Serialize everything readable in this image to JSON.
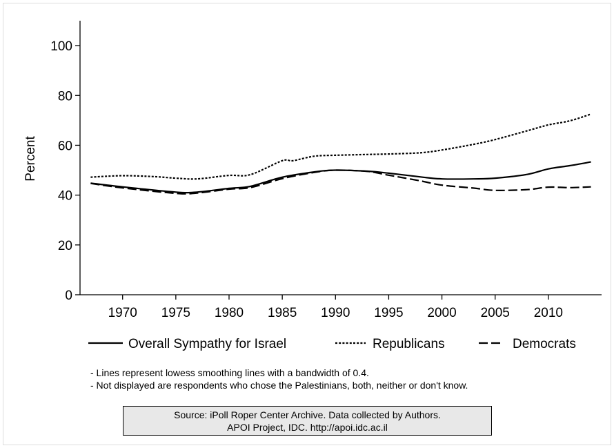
{
  "chart_data": {
    "type": "line",
    "ylabel": "Percent",
    "xlabel": "",
    "xlim": [
      1966,
      2015
    ],
    "ylim": [
      0,
      110
    ],
    "xticks": [
      1970,
      1975,
      1980,
      1985,
      1990,
      1995,
      2000,
      2005,
      2010
    ],
    "yticks": [
      0,
      20,
      40,
      60,
      80,
      100
    ],
    "grid": false,
    "legend_position": "bottom",
    "series": [
      {
        "name": "Overall Sympathy for Israel",
        "style": "solid",
        "x": [
          1967,
          1970,
          1975,
          1977,
          1980,
          1982,
          1985,
          1988,
          1990,
          1993,
          1995,
          1998,
          2000,
          2003,
          2005,
          2008,
          2010,
          2012,
          2014
        ],
        "y": [
          44.8,
          43.3,
          41.2,
          41.2,
          42.7,
          43.5,
          47.2,
          49.3,
          50.0,
          49.6,
          48.8,
          47.3,
          46.5,
          46.5,
          46.8,
          48.3,
          50.5,
          51.8,
          53.3
        ]
      },
      {
        "name": "Republicans",
        "style": "dotted",
        "x": [
          1967,
          1970,
          1973,
          1975,
          1977,
          1980,
          1982,
          1985,
          1986,
          1988,
          1990,
          1993,
          1995,
          1998,
          2000,
          2003,
          2005,
          2008,
          2010,
          2012,
          2014
        ],
        "y": [
          47.2,
          47.8,
          47.4,
          46.8,
          46.5,
          47.9,
          48.2,
          53.8,
          53.8,
          55.6,
          56.0,
          56.3,
          56.5,
          57.0,
          58.1,
          60.4,
          62.3,
          65.8,
          68.2,
          69.8,
          72.5
        ]
      },
      {
        "name": "Democrats",
        "style": "dashed",
        "x": [
          1967,
          1970,
          1975,
          1977,
          1980,
          1982,
          1985,
          1988,
          1990,
          1993,
          1995,
          1998,
          2000,
          2003,
          2005,
          2008,
          2010,
          2012,
          2014
        ],
        "y": [
          44.7,
          42.9,
          40.7,
          40.8,
          42.4,
          43.0,
          46.6,
          49.1,
          50.0,
          49.5,
          48.0,
          45.7,
          44.0,
          42.8,
          41.9,
          42.2,
          43.2,
          43.0,
          43.3
        ]
      }
    ],
    "notes": [
      "- Lines represent lowess smoothing lines with a bandwidth of 0.4.",
      "- Not displayed are respondents who chose the Palestinians, both, neither or don't know."
    ],
    "source": [
      "Source: iPoll Roper Center Archive. Data collected by Authors.",
      "APOI Project, IDC. http://apoi.idc.ac.il"
    ]
  }
}
